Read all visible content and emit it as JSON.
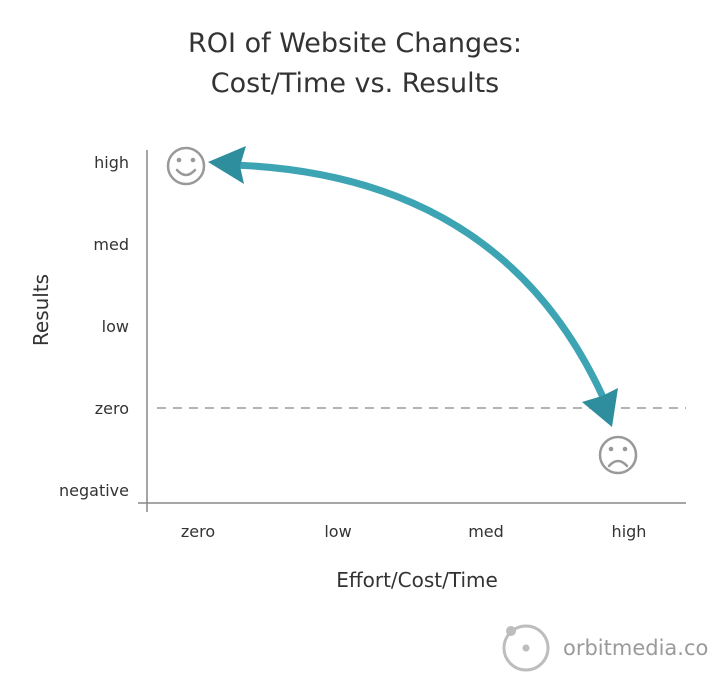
{
  "chart_data": {
    "type": "line",
    "title": [
      "ROI of Website Changes:",
      "Cost/Time vs. Results"
    ],
    "xlabel": "Effort/Cost/Time",
    "ylabel": "Results",
    "x_categories": [
      "zero",
      "low",
      "med",
      "high"
    ],
    "y_categories": [
      "negative",
      "zero",
      "low",
      "med",
      "high"
    ],
    "reference_line": {
      "y": "zero",
      "style": "dashed"
    },
    "series": [
      {
        "points": [
          {
            "x": "zero",
            "y": "high"
          },
          {
            "x": "high",
            "y": "zero"
          }
        ],
        "arrows": "both",
        "curved": true
      }
    ],
    "annotations": [
      {
        "x": "zero",
        "y": "high",
        "icon": "smiley-face-icon"
      },
      {
        "x": "high",
        "y": "negative-zero-mid",
        "icon": "sad-face-icon"
      }
    ],
    "colors": {
      "arrow": "#3da4b3",
      "arrow_head": "#2e8e9d",
      "axis": "#888888",
      "dash": "#9a9a9a",
      "face": "#999999",
      "text": "#333333"
    }
  },
  "branding": {
    "text": "orbitmedia.com",
    "icon": "orbit-logo-icon"
  }
}
